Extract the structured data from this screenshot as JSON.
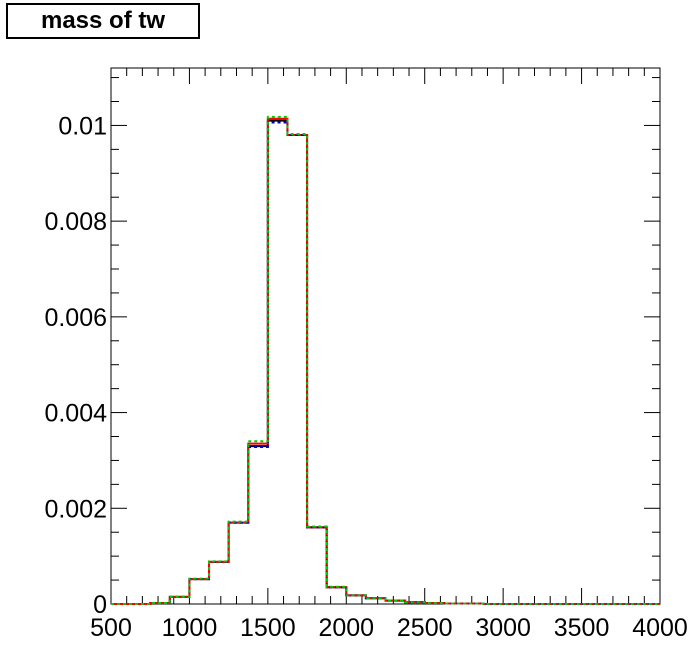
{
  "chart_data": {
    "type": "histogram",
    "title": "mass of tw",
    "xlabel": "",
    "ylabel": "",
    "xlim": [
      500,
      4000
    ],
    "ylim": [
      0,
      0.0112
    ],
    "x_ticks": [
      500,
      1000,
      1500,
      2000,
      2500,
      3000,
      3500,
      4000
    ],
    "x_tick_labels": [
      "500",
      "1000",
      "1500",
      "2000",
      "2500",
      "3000",
      "3500",
      "4000"
    ],
    "y_ticks": [
      0,
      0.002,
      0.004,
      0.006,
      0.008,
      0.01
    ],
    "y_tick_labels": [
      "0",
      "0.002",
      "0.004",
      "0.006",
      "0.008",
      "0.01"
    ],
    "bin_edges": [
      500,
      625,
      750,
      875,
      1000,
      1125,
      1250,
      1375,
      1500,
      1625,
      1750,
      1875,
      2000,
      2125,
      2250,
      2375,
      2500,
      2625,
      2750,
      2875,
      3000,
      3125,
      3250,
      3375,
      3500,
      3625,
      3750,
      3875,
      4000
    ],
    "grid": false,
    "series": [
      {
        "color": "#000000",
        "style": "solid",
        "values": [
          0,
          0,
          2e-05,
          0.00015,
          0.00052,
          0.00088,
          0.0017,
          0.0033,
          0.0101,
          0.0098,
          0.0016,
          0.00035,
          0.00018,
          0.00012,
          7e-05,
          4e-05,
          2e-05,
          1e-05,
          1e-05,
          0,
          0,
          0,
          0,
          0,
          0,
          0,
          0,
          0
        ]
      },
      {
        "color": "#ff0000",
        "style": "solid",
        "values": [
          0,
          0,
          2e-05,
          0.00015,
          0.00052,
          0.00088,
          0.0017,
          0.00335,
          0.01014,
          0.0098,
          0.0016,
          0.00035,
          0.00018,
          0.00012,
          7e-05,
          4e-05,
          2e-05,
          1e-05,
          1e-05,
          0,
          0,
          0,
          0,
          0,
          0,
          0,
          0,
          0
        ]
      },
      {
        "color": "#0000cc",
        "style": "dotted",
        "values": [
          0,
          0,
          2e-05,
          0.00015,
          0.00052,
          0.00088,
          0.0017,
          0.00328,
          0.01006,
          0.0098,
          0.0016,
          0.00035,
          0.00018,
          0.00012,
          7e-05,
          4e-05,
          2e-05,
          1e-05,
          1e-05,
          0,
          0,
          0,
          0,
          0,
          0,
          0,
          0,
          0
        ]
      },
      {
        "color": "#00cc00",
        "style": "dotted",
        "values": [
          0,
          0,
          2e-05,
          0.00015,
          0.00053,
          0.00089,
          0.00172,
          0.0034,
          0.01018,
          0.00982,
          0.00162,
          0.00036,
          0.00018,
          0.00012,
          7e-05,
          4e-05,
          2e-05,
          1e-05,
          1e-05,
          0,
          0,
          0,
          0,
          0,
          0,
          0,
          0,
          0
        ]
      }
    ]
  }
}
